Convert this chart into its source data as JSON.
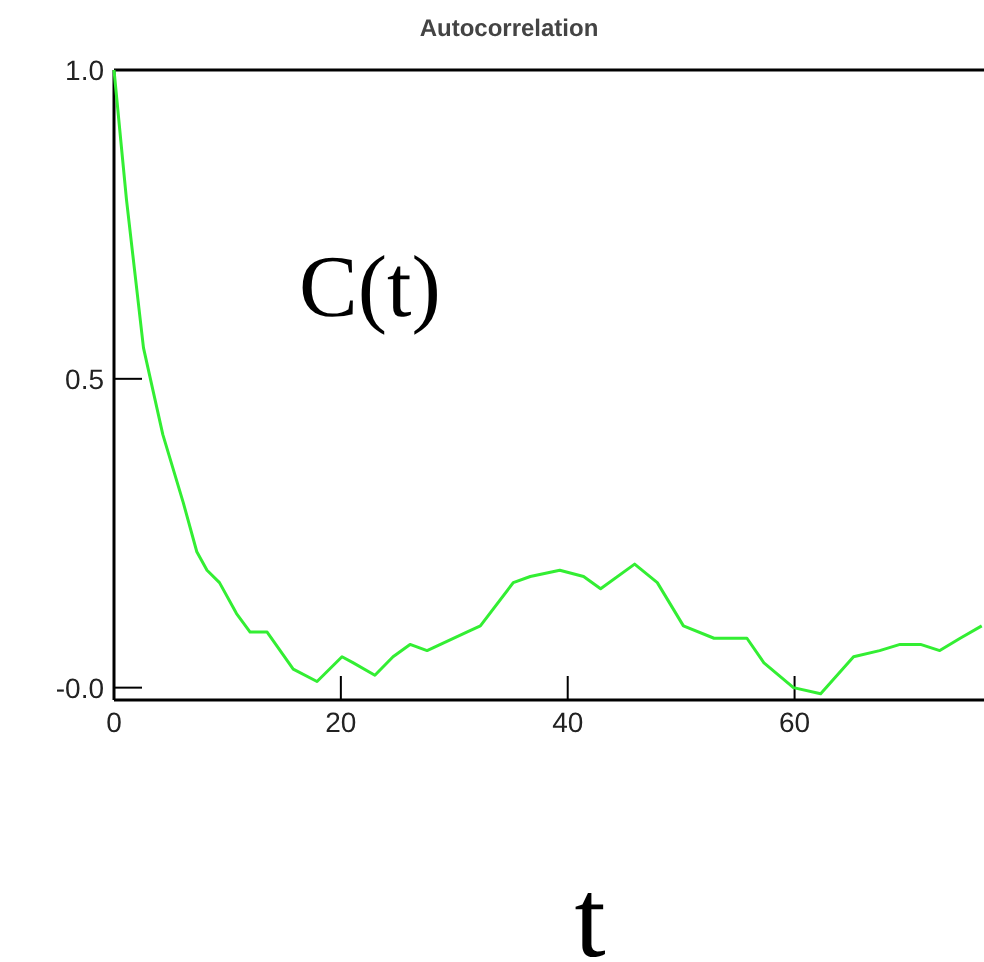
{
  "chart_data": {
    "type": "line",
    "title": "Autocorrelation",
    "xlabel": "t",
    "annotations": [
      "C(t)"
    ],
    "x": [
      0,
      1.1,
      2.6,
      4.3,
      6.1,
      7.3,
      8.2,
      9.3,
      10.8,
      12,
      13.5,
      15.8,
      17.9,
      20.1,
      21.1,
      23,
      24.6,
      26.1,
      27.6,
      31.1,
      32.3,
      35.2,
      36.7,
      39.3,
      41.4,
      42.9,
      45.9,
      47.9,
      50.2,
      52.9,
      55.8,
      57.3,
      59.9,
      62.3,
      65.2,
      67.5,
      69.3,
      71.1,
      72.8,
      74.6,
      76.5
    ],
    "series": [
      {
        "color": "#33ee33",
        "values": [
          1.0,
          0.79,
          0.55,
          0.41,
          0.3,
          0.22,
          0.19,
          0.17,
          0.12,
          0.09,
          0.09,
          0.03,
          0.01,
          0.05,
          0.04,
          0.02,
          0.05,
          0.07,
          0.06,
          0.09,
          0.1,
          0.17,
          0.18,
          0.19,
          0.18,
          0.16,
          0.2,
          0.17,
          0.1,
          0.08,
          0.08,
          0.04,
          0,
          -0.01,
          0.05,
          0.06,
          0.07,
          0.07,
          0.06,
          0.08,
          0.1
        ]
      }
    ],
    "xlim": [
      0,
      76.7
    ],
    "ylim": [
      -0.02,
      1
    ],
    "xticks": [
      0,
      20,
      40,
      60
    ],
    "yticks": [
      {
        "value": 0,
        "label": "-0.0"
      },
      0.5,
      {
        "value": 1,
        "label": "1.0"
      }
    ],
    "grid": false,
    "marker": "none",
    "line_style": "solid"
  }
}
